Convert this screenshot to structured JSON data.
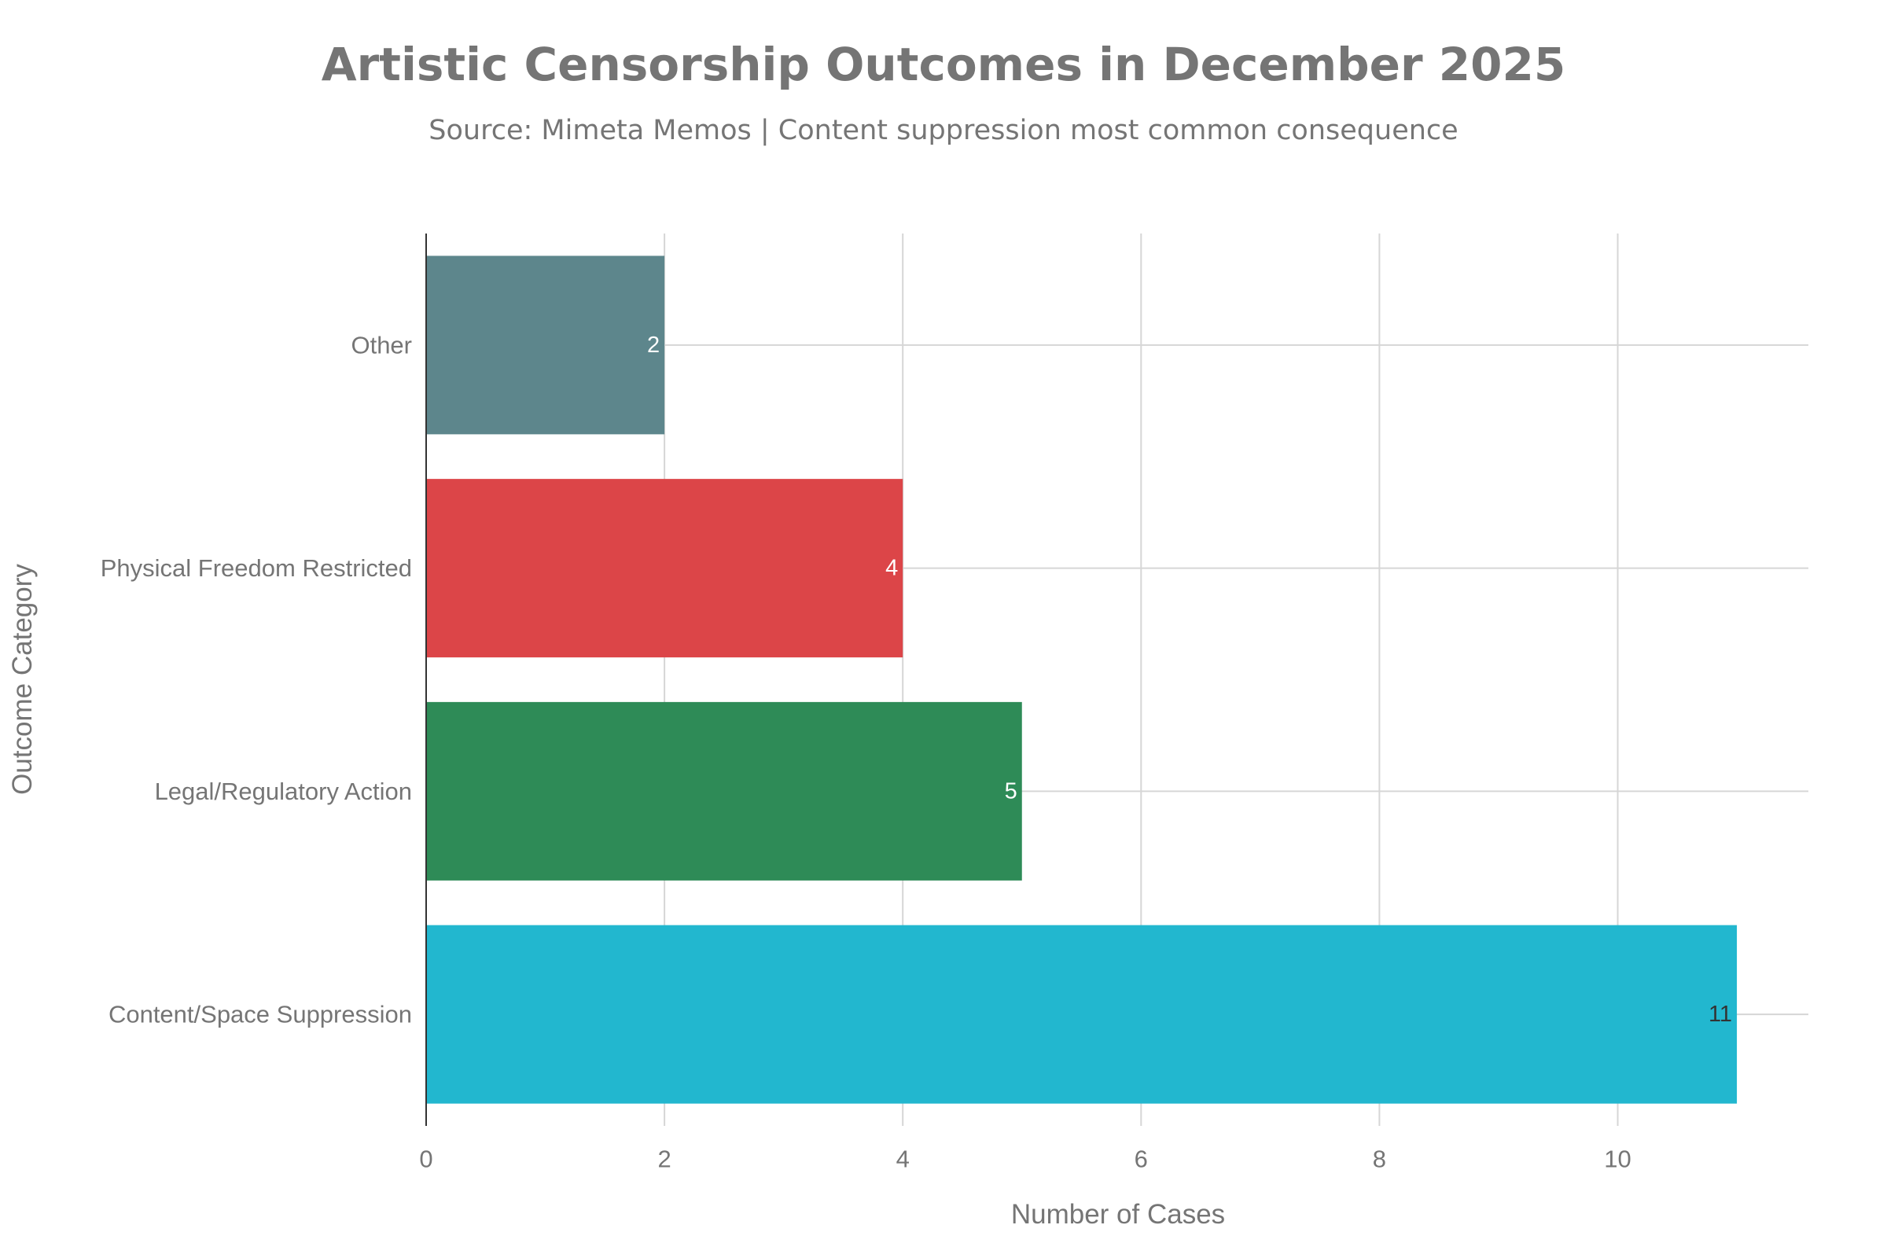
{
  "chart_data": {
    "type": "bar",
    "orientation": "horizontal",
    "title": "Artistic Censorship Outcomes in December 2025",
    "subtitle": "Source: Mimeta Memos | Content suppression most common consequence",
    "xlabel": "Number of Cases",
    "ylabel": "Outcome Category",
    "categories": [
      "Content/Space Suppression",
      "Legal/Regulatory Action",
      "Physical Freedom Restricted",
      "Other"
    ],
    "values": [
      11,
      5,
      4,
      2
    ],
    "data_labels": [
      "11",
      "5",
      "4",
      "2"
    ],
    "colors": [
      "#22b7cf",
      "#2e8b57",
      "#dc4548",
      "#5d868c"
    ],
    "label_colors": [
      "#333333",
      "#ffffff",
      "#ffffff",
      "#ffffff"
    ],
    "xlim": [
      0,
      11.6
    ],
    "x_ticks": [
      0,
      2,
      4,
      6,
      8,
      10
    ],
    "x_tick_labels": [
      "0",
      "2",
      "4",
      "6",
      "8",
      "10"
    ],
    "grid": true,
    "legend": "none"
  }
}
